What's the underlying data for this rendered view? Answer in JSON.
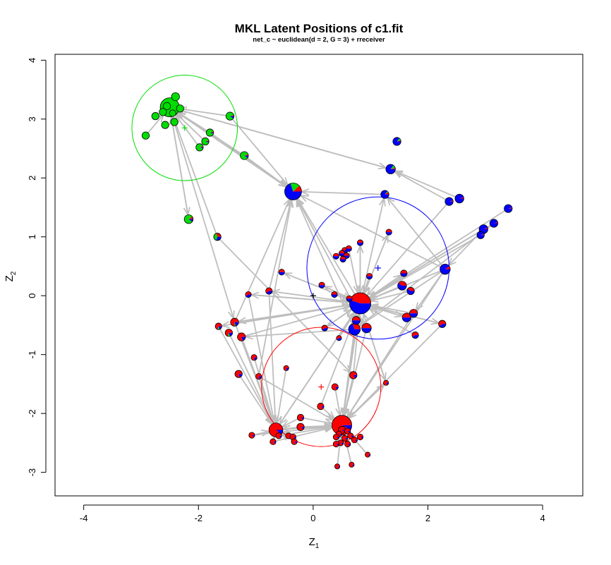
{
  "chart_data": {
    "type": "scatter",
    "title": "MKL Latent Positions of c1.fit",
    "subtitle": "net_c ~ euclidean(d = 2, G = 3) + rreceiver",
    "xlabel": {
      "main": "Z",
      "sub": "1"
    },
    "ylabel": {
      "main": "Z",
      "sub": "2"
    },
    "xlim": [
      -4.5,
      4.7
    ],
    "ylim": [
      -3.4,
      4.1
    ],
    "xticks": [
      -4,
      -2,
      0,
      2,
      4
    ],
    "yticks": [
      -3,
      -2,
      -1,
      0,
      1,
      2,
      3,
      4
    ],
    "grid": false,
    "colors": {
      "group1": "#ff0000",
      "group2": "#00dd00",
      "group3": "#0000ff",
      "edge": "#bebebe"
    },
    "clusters": [
      {
        "name": "red",
        "color": "#ff0000",
        "center": [
          0.14,
          -1.55
        ],
        "radius": 1.04
      },
      {
        "name": "green",
        "color": "#00dd00",
        "center": [
          -2.24,
          2.85
        ],
        "radius": 0.92
      },
      {
        "name": "blue",
        "color": "#0000ff",
        "center": [
          1.13,
          0.47
        ],
        "radius": 1.24
      }
    ],
    "nodes": [
      {
        "x": -2.5,
        "y": 3.2,
        "s": 2.6,
        "p": [
          0,
          1,
          0
        ]
      },
      {
        "x": -2.4,
        "y": 3.38,
        "s": 1.1,
        "p": [
          0,
          1,
          0
        ]
      },
      {
        "x": -2.55,
        "y": 3.22,
        "s": 1.0,
        "p": [
          0,
          1,
          0
        ]
      },
      {
        "x": -2.62,
        "y": 3.12,
        "s": 1.0,
        "p": [
          0,
          1,
          0
        ]
      },
      {
        "x": -2.32,
        "y": 3.18,
        "s": 1.0,
        "p": [
          0,
          1,
          0
        ]
      },
      {
        "x": -2.42,
        "y": 2.95,
        "s": 1.0,
        "p": [
          0,
          1,
          0
        ]
      },
      {
        "x": -2.58,
        "y": 2.9,
        "s": 1.0,
        "p": [
          0,
          1,
          0
        ]
      },
      {
        "x": -2.75,
        "y": 3.05,
        "s": 1.0,
        "p": [
          0,
          1,
          0
        ]
      },
      {
        "x": -2.45,
        "y": 3.1,
        "s": 0.9,
        "p": [
          0,
          1,
          0
        ]
      },
      {
        "x": -2.92,
        "y": 2.72,
        "s": 1.0,
        "p": [
          0,
          1,
          0
        ]
      },
      {
        "x": -1.8,
        "y": 2.77,
        "s": 1.0,
        "p": [
          0.05,
          0.9,
          0.05
        ]
      },
      {
        "x": -1.88,
        "y": 2.62,
        "s": 1.0,
        "p": [
          0.05,
          0.9,
          0.05
        ]
      },
      {
        "x": -1.98,
        "y": 2.52,
        "s": 1.0,
        "p": [
          0.05,
          0.9,
          0.05
        ]
      },
      {
        "x": -1.45,
        "y": 3.05,
        "s": 1.1,
        "p": [
          0.05,
          0.85,
          0.1
        ]
      },
      {
        "x": -1.2,
        "y": 2.38,
        "s": 1.1,
        "p": [
          0.05,
          0.85,
          0.1
        ]
      },
      {
        "x": -2.17,
        "y": 1.3,
        "s": 1.2,
        "p": [
          0.1,
          0.8,
          0.1
        ]
      },
      {
        "x": -1.67,
        "y": 1.0,
        "s": 1.0,
        "p": [
          0.3,
          0.4,
          0.3
        ]
      },
      {
        "x": -0.35,
        "y": 1.77,
        "s": 2.3,
        "p": [
          0.12,
          0.18,
          0.7
        ]
      },
      {
        "x": 1.46,
        "y": 2.62,
        "s": 1.1,
        "p": [
          0.05,
          0.1,
          0.85
        ]
      },
      {
        "x": 1.35,
        "y": 2.15,
        "s": 1.3,
        "p": [
          0.05,
          0.1,
          0.85
        ]
      },
      {
        "x": 1.25,
        "y": 1.72,
        "s": 1.1,
        "p": [
          0.1,
          0.05,
          0.85
        ]
      },
      {
        "x": 2.37,
        "y": 1.6,
        "s": 1.1,
        "p": [
          0.05,
          0,
          0.95
        ]
      },
      {
        "x": 2.55,
        "y": 1.65,
        "s": 1.2,
        "p": [
          0.05,
          0,
          0.95
        ]
      },
      {
        "x": 3.4,
        "y": 1.48,
        "s": 1.1,
        "p": [
          0.05,
          0,
          0.95
        ]
      },
      {
        "x": 3.15,
        "y": 1.23,
        "s": 1.1,
        "p": [
          0.05,
          0,
          0.95
        ]
      },
      {
        "x": 2.97,
        "y": 1.13,
        "s": 1.2,
        "p": [
          0.05,
          0,
          0.95
        ]
      },
      {
        "x": 2.92,
        "y": 1.03,
        "s": 1.0,
        "p": [
          0.05,
          0,
          0.95
        ]
      },
      {
        "x": 2.3,
        "y": 0.45,
        "s": 1.4,
        "p": [
          0.1,
          0,
          0.9
        ]
      },
      {
        "x": 0.82,
        "y": -0.13,
        "s": 2.9,
        "p": [
          0.45,
          0,
          0.55
        ]
      },
      {
        "x": 0.72,
        "y": -0.57,
        "s": 1.6,
        "p": [
          0.3,
          0,
          0.7
        ]
      },
      {
        "x": 0.93,
        "y": -0.55,
        "s": 1.3,
        "p": [
          0.5,
          0,
          0.5
        ]
      },
      {
        "x": 0.75,
        "y": -0.42,
        "s": 1.1,
        "p": [
          0.5,
          0,
          0.5
        ]
      },
      {
        "x": 1.55,
        "y": 0.17,
        "s": 1.2,
        "p": [
          0.4,
          0,
          0.6
        ]
      },
      {
        "x": 1.7,
        "y": 0.08,
        "s": 1.0,
        "p": [
          0.4,
          0,
          0.6
        ]
      },
      {
        "x": 1.63,
        "y": -0.37,
        "s": 1.2,
        "p": [
          0.5,
          0,
          0.5
        ]
      },
      {
        "x": 1.75,
        "y": -0.3,
        "s": 1.1,
        "p": [
          0.5,
          0,
          0.5
        ]
      },
      {
        "x": 1.58,
        "y": 0.38,
        "s": 0.9,
        "p": [
          0.5,
          0,
          0.5
        ]
      },
      {
        "x": 1.78,
        "y": -0.67,
        "s": 0.9,
        "p": [
          0.6,
          0,
          0.4
        ]
      },
      {
        "x": 2.25,
        "y": -0.48,
        "s": 1.0,
        "p": [
          0.6,
          0,
          0.4
        ]
      },
      {
        "x": 1.32,
        "y": 1.08,
        "s": 0.8,
        "p": [
          0.5,
          0,
          0.5
        ]
      },
      {
        "x": 0.82,
        "y": 0.9,
        "s": 0.8,
        "p": [
          0.5,
          0,
          0.5
        ]
      },
      {
        "x": 0.98,
        "y": 0.33,
        "s": 0.8,
        "p": [
          0.5,
          0,
          0.5
        ]
      },
      {
        "x": 0.55,
        "y": 0.77,
        "s": 0.8,
        "p": [
          0.5,
          0,
          0.5
        ]
      },
      {
        "x": 0.62,
        "y": 0.8,
        "s": 0.8,
        "p": [
          0.5,
          0,
          0.5
        ]
      },
      {
        "x": 0.5,
        "y": 0.72,
        "s": 0.8,
        "p": [
          0.5,
          0,
          0.5
        ]
      },
      {
        "x": 0.58,
        "y": 0.68,
        "s": 0.8,
        "p": [
          0.5,
          0,
          0.5
        ]
      },
      {
        "x": 0.4,
        "y": 0.67,
        "s": 0.8,
        "p": [
          0.5,
          0,
          0.5
        ]
      },
      {
        "x": 0.52,
        "y": 0.62,
        "s": 0.8,
        "p": [
          0.5,
          0,
          0.5
        ]
      },
      {
        "x": 0.15,
        "y": 0.18,
        "s": 0.8,
        "p": [
          0.5,
          0,
          0.5
        ]
      },
      {
        "x": 0.37,
        "y": 0.02,
        "s": 0.8,
        "p": [
          0.5,
          0,
          0.5
        ]
      },
      {
        "x": 0.63,
        "y": -0.05,
        "s": 0.8,
        "p": [
          0.5,
          0,
          0.5
        ]
      },
      {
        "x": -0.55,
        "y": 0.4,
        "s": 0.8,
        "p": [
          0.5,
          0,
          0.5
        ]
      },
      {
        "x": -0.77,
        "y": 0.08,
        "s": 0.9,
        "p": [
          0.6,
          0,
          0.4
        ]
      },
      {
        "x": -1.13,
        "y": 0.02,
        "s": 0.8,
        "p": [
          0.6,
          0,
          0.4
        ]
      },
      {
        "x": 0.2,
        "y": -0.55,
        "s": 0.8,
        "p": [
          0.6,
          0,
          0.4
        ]
      },
      {
        "x": 0.45,
        "y": -0.72,
        "s": 0.7,
        "p": [
          0.6,
          0,
          0.4
        ]
      },
      {
        "x": -1.37,
        "y": -0.45,
        "s": 1.1,
        "p": [
          0.75,
          0.05,
          0.2
        ]
      },
      {
        "x": -1.65,
        "y": -0.52,
        "s": 0.9,
        "p": [
          0.7,
          0.1,
          0.2
        ]
      },
      {
        "x": -1.47,
        "y": -0.63,
        "s": 1.0,
        "p": [
          0.7,
          0.1,
          0.2
        ]
      },
      {
        "x": -1.25,
        "y": -0.7,
        "s": 1.1,
        "p": [
          0.8,
          0,
          0.2
        ]
      },
      {
        "x": -1.03,
        "y": -1.05,
        "s": 0.8,
        "p": [
          0.8,
          0,
          0.2
        ]
      },
      {
        "x": -1.3,
        "y": -1.33,
        "s": 1.0,
        "p": [
          0.8,
          0,
          0.2
        ]
      },
      {
        "x": -0.95,
        "y": -1.37,
        "s": 0.8,
        "p": [
          0.8,
          0,
          0.2
        ]
      },
      {
        "x": -0.47,
        "y": -1.23,
        "s": 0.7,
        "p": [
          0.8,
          0,
          0.2
        ]
      },
      {
        "x": 0.38,
        "y": -1.55,
        "s": 0.9,
        "p": [
          0.85,
          0,
          0.15
        ]
      },
      {
        "x": 0.7,
        "y": -1.35,
        "s": 1.0,
        "p": [
          0.85,
          0,
          0.15
        ]
      },
      {
        "x": 1.27,
        "y": -1.48,
        "s": 0.7,
        "p": [
          0.85,
          0,
          0.15
        ]
      },
      {
        "x": 0.13,
        "y": -1.88,
        "s": 0.9,
        "p": [
          0.9,
          0,
          0.1
        ]
      },
      {
        "x": -0.22,
        "y": -2.07,
        "s": 0.9,
        "p": [
          0.9,
          0,
          0.1
        ]
      },
      {
        "x": -0.22,
        "y": -2.23,
        "s": 1.0,
        "p": [
          0.9,
          0,
          0.1
        ]
      },
      {
        "x": -0.65,
        "y": -2.28,
        "s": 1.9,
        "p": [
          0.9,
          0,
          0.1
        ]
      },
      {
        "x": -0.43,
        "y": -2.38,
        "s": 0.8,
        "p": [
          0.9,
          0,
          0.1
        ]
      },
      {
        "x": -0.7,
        "y": -2.48,
        "s": 0.8,
        "p": [
          0.9,
          0,
          0.1
        ]
      },
      {
        "x": -0.35,
        "y": -2.4,
        "s": 0.8,
        "p": [
          0.9,
          0,
          0.1
        ]
      },
      {
        "x": -0.33,
        "y": -2.48,
        "s": 0.8,
        "p": [
          0.9,
          0,
          0.1
        ]
      },
      {
        "x": -1.07,
        "y": -2.37,
        "s": 0.8,
        "p": [
          0.9,
          0,
          0.1
        ]
      },
      {
        "x": -0.6,
        "y": -2.38,
        "s": 0.8,
        "p": [
          0.9,
          0,
          0.1
        ]
      },
      {
        "x": 0.5,
        "y": -2.2,
        "s": 2.7,
        "p": [
          0.93,
          0,
          0.07
        ]
      },
      {
        "x": 0.5,
        "y": -2.28,
        "s": 1.0,
        "p": [
          0.9,
          0,
          0.1
        ]
      },
      {
        "x": 0.45,
        "y": -2.35,
        "s": 0.8,
        "p": [
          0.9,
          0,
          0.1
        ]
      },
      {
        "x": 0.6,
        "y": -2.3,
        "s": 0.8,
        "p": [
          0.9,
          0,
          0.1
        ]
      },
      {
        "x": 0.4,
        "y": -2.4,
        "s": 0.8,
        "p": [
          0.9,
          0,
          0.1
        ]
      },
      {
        "x": 0.55,
        "y": -2.42,
        "s": 0.8,
        "p": [
          0.9,
          0,
          0.1
        ]
      },
      {
        "x": 0.65,
        "y": -2.38,
        "s": 0.8,
        "p": [
          0.9,
          0,
          0.1
        ]
      },
      {
        "x": 0.72,
        "y": -2.45,
        "s": 0.8,
        "p": [
          0.9,
          0,
          0.1
        ]
      },
      {
        "x": 0.48,
        "y": -2.5,
        "s": 0.8,
        "p": [
          0.9,
          0,
          0.1
        ]
      },
      {
        "x": 0.6,
        "y": -2.52,
        "s": 0.8,
        "p": [
          0.9,
          0,
          0.1
        ]
      },
      {
        "x": 0.4,
        "y": -2.52,
        "s": 0.8,
        "p": [
          0.9,
          0,
          0.1
        ]
      },
      {
        "x": 0.82,
        "y": -2.4,
        "s": 0.8,
        "p": [
          0.9,
          0,
          0.1
        ]
      },
      {
        "x": 0.95,
        "y": -2.7,
        "s": 0.7,
        "p": [
          0.9,
          0,
          0.1
        ]
      },
      {
        "x": 0.42,
        "y": -2.9,
        "s": 0.7,
        "p": [
          0.9,
          0,
          0.1
        ]
      },
      {
        "x": 0.67,
        "y": -2.87,
        "s": 0.7,
        "p": [
          0.9,
          0,
          0.1
        ]
      }
    ],
    "edges": [
      [
        13,
        0
      ],
      [
        14,
        0
      ],
      [
        10,
        0
      ],
      [
        11,
        0
      ],
      [
        12,
        0
      ],
      [
        15,
        0
      ],
      [
        9,
        0
      ],
      [
        16,
        0
      ],
      [
        17,
        0
      ],
      [
        19,
        0
      ],
      [
        0,
        15
      ],
      [
        0,
        17
      ],
      [
        13,
        17
      ],
      [
        14,
        17
      ],
      [
        10,
        17
      ],
      [
        28,
        17
      ],
      [
        27,
        17
      ],
      [
        29,
        17
      ],
      [
        30,
        17
      ],
      [
        20,
        17
      ],
      [
        52,
        17
      ],
      [
        56,
        17
      ],
      [
        62,
        17
      ],
      [
        0,
        56
      ],
      [
        16,
        65
      ],
      [
        0,
        19
      ],
      [
        21,
        19
      ],
      [
        22,
        19
      ],
      [
        27,
        20
      ],
      [
        27,
        28
      ],
      [
        21,
        28
      ],
      [
        23,
        28
      ],
      [
        24,
        28
      ],
      [
        25,
        28
      ],
      [
        26,
        28
      ],
      [
        32,
        28
      ],
      [
        33,
        28
      ],
      [
        34,
        28
      ],
      [
        35,
        28
      ],
      [
        37,
        28
      ],
      [
        38,
        28
      ],
      [
        39,
        28
      ],
      [
        40,
        28
      ],
      [
        41,
        28
      ],
      [
        43,
        28
      ],
      [
        48,
        28
      ],
      [
        49,
        28
      ],
      [
        50,
        28
      ],
      [
        53,
        28
      ],
      [
        54,
        28
      ],
      [
        55,
        28
      ],
      [
        57,
        28
      ],
      [
        59,
        28
      ],
      [
        70,
        28
      ],
      [
        77,
        28
      ],
      [
        65,
        28
      ],
      [
        66,
        28
      ],
      [
        67,
        28
      ],
      [
        28,
        70
      ],
      [
        28,
        77
      ],
      [
        29,
        77
      ],
      [
        30,
        77
      ],
      [
        31,
        77
      ],
      [
        35,
        77
      ],
      [
        38,
        77
      ],
      [
        64,
        77
      ],
      [
        65,
        77
      ],
      [
        67,
        77
      ],
      [
        68,
        77
      ],
      [
        69,
        77
      ],
      [
        70,
        77
      ],
      [
        72,
        77
      ],
      [
        75,
        77
      ],
      [
        76,
        77
      ],
      [
        89,
        77
      ],
      [
        90,
        77
      ],
      [
        91,
        77
      ],
      [
        62,
        77
      ],
      [
        56,
        70
      ],
      [
        57,
        70
      ],
      [
        58,
        70
      ],
      [
        59,
        70
      ],
      [
        60,
        70
      ],
      [
        61,
        70
      ],
      [
        62,
        70
      ],
      [
        63,
        70
      ],
      [
        73,
        70
      ],
      [
        74,
        70
      ],
      [
        75,
        70
      ],
      [
        71,
        70
      ],
      [
        72,
        70
      ],
      [
        68,
        70
      ],
      [
        69,
        70
      ],
      [
        52,
        70
      ],
      [
        53,
        70
      ],
      [
        28,
        56
      ],
      [
        28,
        57
      ],
      [
        28,
        52
      ],
      [
        28,
        53
      ],
      [
        28,
        20
      ],
      [
        28,
        36
      ],
      [
        28,
        34
      ],
      [
        29,
        59
      ],
      [
        28,
        38
      ],
      [
        77,
        66
      ],
      [
        28,
        66
      ],
      [
        28,
        51
      ],
      [
        28,
        48
      ],
      [
        28,
        54
      ],
      [
        28,
        56
      ],
      [
        27,
        29
      ],
      [
        27,
        35
      ],
      [
        27,
        77
      ],
      [
        28,
        39
      ],
      [
        28,
        40
      ],
      [
        25,
        27
      ],
      [
        24,
        29
      ]
    ]
  }
}
